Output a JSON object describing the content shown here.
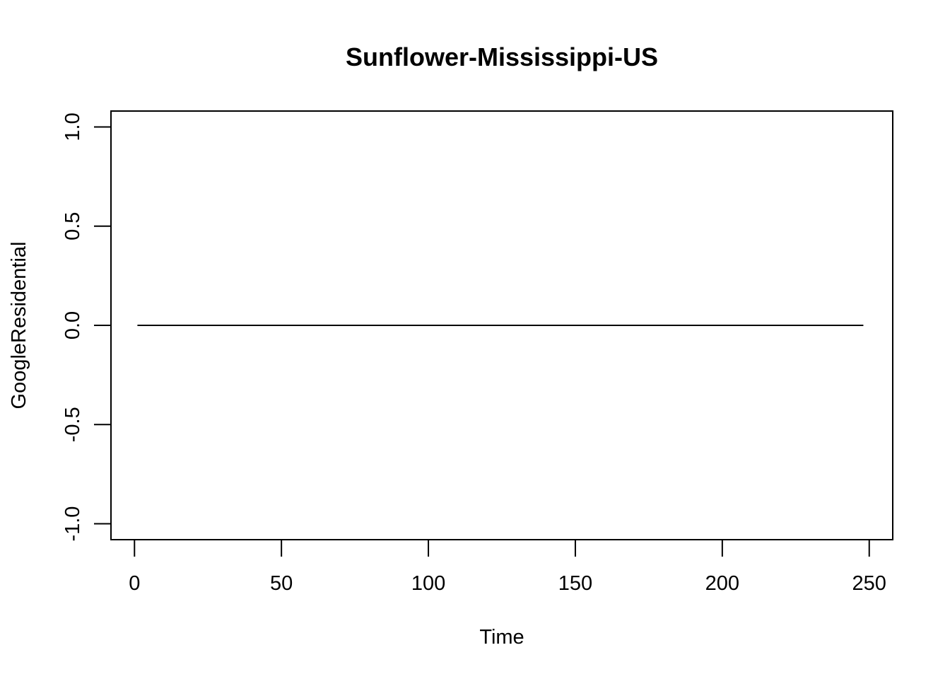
{
  "chart_data": {
    "type": "line",
    "title": "Sunflower-Mississippi-US",
    "xlabel": "Time",
    "ylabel": "GoogleResidential",
    "xlim": [
      -8,
      258
    ],
    "ylim": [
      -1.08,
      1.08
    ],
    "x_ticks": [
      0,
      50,
      100,
      150,
      200,
      250
    ],
    "x_tick_labels": [
      "0",
      "50",
      "100",
      "150",
      "200",
      "250"
    ],
    "y_ticks": [
      -1.0,
      -0.5,
      0.0,
      0.5,
      1.0
    ],
    "y_tick_labels": [
      "-1.0",
      "-0.5",
      "0.0",
      "0.5",
      "1.0"
    ],
    "grid": false,
    "legend": "none",
    "series": [
      {
        "color": "#000000",
        "x": [
          1,
          248
        ],
        "y": [
          0,
          0
        ]
      }
    ]
  }
}
